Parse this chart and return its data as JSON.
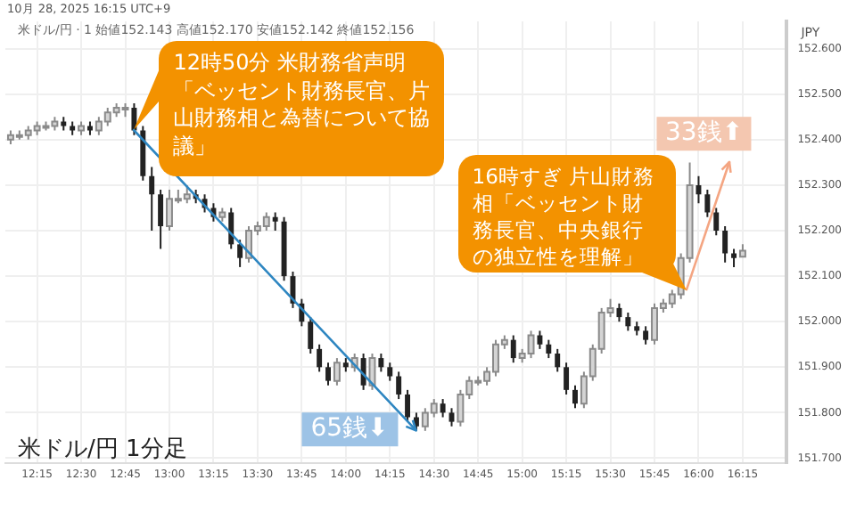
{
  "chart_data": {
    "type": "candlestick",
    "ylabel": "JPY",
    "annotations": [
      "10月 28, 2025 16:15 UTC+9",
      "米ドル/円 · 1 始値152.143 高値152.170 安値152.142 終値152.156",
      {
        "text": "12時50分 米財務省声明「ベッセント財務長官、片山財務相と為替について協議」",
        "x": 12.8,
        "y": 152.42
      },
      {
        "text": "16時すぎ 片山財務相「ベッセント財務長官、中央銀行の独立性を理解」",
        "x": 15.93,
        "y": 152.07
      },
      "65銭⬇",
      {
        "text": "33銭⬆",
        "x": 15.95,
        "y": 152.35
      },
      "米ドル/円 1分足"
    ],
    "x": [
      12.1,
      12.15,
      12.2,
      12.25,
      12.3,
      12.35,
      12.4,
      12.45,
      12.5,
      12.55,
      12.6,
      12.65,
      12.7,
      12.75,
      12.8,
      12.85,
      12.9,
      12.95,
      13,
      13.05,
      13.1,
      13.15,
      13.2,
      13.25,
      13.3,
      13.35,
      13.4,
      13.45,
      13.5,
      13.55,
      13.6,
      13.65,
      13.7,
      13.75,
      13.8,
      13.85,
      13.9,
      13.95,
      14,
      14.05,
      14.1,
      14.15,
      14.2,
      14.25,
      14.3,
      14.35,
      14.4,
      14.45,
      14.5,
      14.55,
      14.6,
      14.65,
      14.7,
      14.75,
      14.8,
      14.85,
      14.9,
      14.95,
      15,
      15.05,
      15.1,
      15.15,
      15.2,
      15.25,
      15.3,
      15.35,
      15.4,
      15.45,
      15.5,
      15.55,
      15.6,
      15.65,
      15.7,
      15.75,
      15.8,
      15.85,
      15.9,
      15.95,
      16,
      16.05,
      16.1,
      16.15,
      16.2,
      16.25
    ],
    "ohlc": [
      [
        152.4,
        152.42,
        152.39,
        152.41
      ],
      [
        152.41,
        152.42,
        152.4,
        152.41
      ],
      [
        152.41,
        152.43,
        152.4,
        152.42
      ],
      [
        152.42,
        152.44,
        152.41,
        152.43
      ],
      [
        152.43,
        152.44,
        152.42,
        152.43
      ],
      [
        152.43,
        152.45,
        152.42,
        152.44
      ],
      [
        152.44,
        152.45,
        152.42,
        152.43
      ],
      [
        152.43,
        152.44,
        152.41,
        152.42
      ],
      [
        152.42,
        152.44,
        152.41,
        152.43
      ],
      [
        152.43,
        152.44,
        152.41,
        152.42
      ],
      [
        152.42,
        152.45,
        152.41,
        152.44
      ],
      [
        152.44,
        152.47,
        152.43,
        152.46
      ],
      [
        152.46,
        152.48,
        152.45,
        152.47
      ],
      [
        152.47,
        152.48,
        152.45,
        152.47
      ],
      [
        152.47,
        152.48,
        152.41,
        152.42
      ],
      [
        152.42,
        152.43,
        152.31,
        152.32
      ],
      [
        152.32,
        152.34,
        152.2,
        152.28
      ],
      [
        152.28,
        152.29,
        152.16,
        152.21
      ],
      [
        152.21,
        152.29,
        152.2,
        152.27
      ],
      [
        152.27,
        152.29,
        152.26,
        152.27
      ],
      [
        152.27,
        152.3,
        152.26,
        152.28
      ],
      [
        152.28,
        152.29,
        152.26,
        152.27
      ],
      [
        152.27,
        152.28,
        152.24,
        152.25
      ],
      [
        152.25,
        152.26,
        152.22,
        152.23
      ],
      [
        152.23,
        152.25,
        152.22,
        152.24
      ],
      [
        152.24,
        152.25,
        152.16,
        152.17
      ],
      [
        152.17,
        152.18,
        152.12,
        152.14
      ],
      [
        152.14,
        152.21,
        152.13,
        152.2
      ],
      [
        152.2,
        152.22,
        152.19,
        152.21
      ],
      [
        152.21,
        152.24,
        152.2,
        152.23
      ],
      [
        152.23,
        152.24,
        152.2,
        152.22
      ],
      [
        152.22,
        152.23,
        152.09,
        152.1
      ],
      [
        152.1,
        152.11,
        152.03,
        152.04
      ],
      [
        152.04,
        152.05,
        151.99,
        152.0
      ],
      [
        152.0,
        152.01,
        151.93,
        151.94
      ],
      [
        151.94,
        151.95,
        151.89,
        151.9
      ],
      [
        151.9,
        151.91,
        151.86,
        151.87
      ],
      [
        151.87,
        151.92,
        151.86,
        151.91
      ],
      [
        151.91,
        151.92,
        151.89,
        151.9
      ],
      [
        151.9,
        151.93,
        151.89,
        151.92
      ],
      [
        151.92,
        151.93,
        151.85,
        151.86
      ],
      [
        151.86,
        151.93,
        151.85,
        151.92
      ],
      [
        151.92,
        151.93,
        151.89,
        151.9
      ],
      [
        151.9,
        151.91,
        151.87,
        151.88
      ],
      [
        151.88,
        151.89,
        151.83,
        151.84
      ],
      [
        151.84,
        151.85,
        151.78,
        151.79
      ],
      [
        151.79,
        151.8,
        151.76,
        151.77
      ],
      [
        151.77,
        151.81,
        151.76,
        151.8
      ],
      [
        151.8,
        151.83,
        151.79,
        151.82
      ],
      [
        151.82,
        151.83,
        151.79,
        151.8
      ],
      [
        151.8,
        151.81,
        151.77,
        151.78
      ],
      [
        151.78,
        151.85,
        151.77,
        151.84
      ],
      [
        151.84,
        151.88,
        151.83,
        151.87
      ],
      [
        151.87,
        151.88,
        151.86,
        151.87
      ],
      [
        151.87,
        151.9,
        151.86,
        151.89
      ],
      [
        151.89,
        151.96,
        151.88,
        151.95
      ],
      [
        151.95,
        151.97,
        151.94,
        151.96
      ],
      [
        151.96,
        151.97,
        151.91,
        151.92
      ],
      [
        151.92,
        151.94,
        151.91,
        151.93
      ],
      [
        151.93,
        151.98,
        151.92,
        151.97
      ],
      [
        151.97,
        151.98,
        151.94,
        151.95
      ],
      [
        151.95,
        151.96,
        151.92,
        151.93
      ],
      [
        151.93,
        151.94,
        151.89,
        151.9
      ],
      [
        151.9,
        151.91,
        151.84,
        151.85
      ],
      [
        151.85,
        151.86,
        151.81,
        151.82
      ],
      [
        151.82,
        151.89,
        151.81,
        151.88
      ],
      [
        151.88,
        151.95,
        151.87,
        151.94
      ],
      [
        151.94,
        152.03,
        151.93,
        152.02
      ],
      [
        152.02,
        152.05,
        152.01,
        152.03
      ],
      [
        152.03,
        152.04,
        152.0,
        152.01
      ],
      [
        152.01,
        152.02,
        151.98,
        151.99
      ],
      [
        151.99,
        152.0,
        151.97,
        151.98
      ],
      [
        151.98,
        151.99,
        151.95,
        151.96
      ],
      [
        151.96,
        152.04,
        151.95,
        152.03
      ],
      [
        152.03,
        152.05,
        152.02,
        152.04
      ],
      [
        152.04,
        152.07,
        152.03,
        152.06
      ],
      [
        152.06,
        152.15,
        152.05,
        152.14
      ],
      [
        152.14,
        152.35,
        152.13,
        152.3
      ],
      [
        152.3,
        152.32,
        152.26,
        152.28
      ],
      [
        152.28,
        152.29,
        152.23,
        152.24
      ],
      [
        152.24,
        152.25,
        152.19,
        152.2
      ],
      [
        152.2,
        152.21,
        152.13,
        152.15
      ],
      [
        152.15,
        152.16,
        152.12,
        152.14
      ],
      [
        152.143,
        152.17,
        152.142,
        152.156
      ]
    ],
    "xlim": [
      12.07,
      16.5
    ],
    "ylim": [
      151.69,
      152.66
    ],
    "xticks": [
      {
        "value": 12.25,
        "label": "12:15"
      },
      {
        "value": 12.5,
        "label": "12:30"
      },
      {
        "value": 12.75,
        "label": "12:45"
      },
      {
        "value": 13,
        "label": "13:00"
      },
      {
        "value": 13.25,
        "label": "13:15"
      },
      {
        "value": 13.5,
        "label": "13:30"
      },
      {
        "value": 13.75,
        "label": "13:45"
      },
      {
        "value": 14,
        "label": "14:00"
      },
      {
        "value": 14.25,
        "label": "14:15"
      },
      {
        "value": 14.5,
        "label": "14:30"
      },
      {
        "value": 14.75,
        "label": "14:45"
      },
      {
        "value": 15,
        "label": "15:00"
      },
      {
        "value": 15.25,
        "label": "15:15"
      },
      {
        "value": 15.5,
        "label": "15:30"
      },
      {
        "value": 15.75,
        "label": "15:45"
      },
      {
        "value": 16,
        "label": "16:00"
      },
      {
        "value": 16.25,
        "label": "16:15"
      }
    ],
    "yticks": [
      {
        "value": 151.7,
        "label": "151.700"
      },
      {
        "value": 151.8,
        "label": "151.800"
      },
      {
        "value": 151.9,
        "label": "151.900"
      },
      {
        "value": 152,
        "label": "152.000"
      },
      {
        "value": 152.1,
        "label": "152.100"
      },
      {
        "value": 152.2,
        "label": "152.200"
      },
      {
        "value": 152.3,
        "label": "152.300"
      },
      {
        "value": 152.4,
        "label": "152.400"
      },
      {
        "value": 152.5,
        "label": "152.500"
      },
      {
        "value": 152.6,
        "label": "152.600"
      }
    ],
    "grid": true,
    "legend": false
  }
}
